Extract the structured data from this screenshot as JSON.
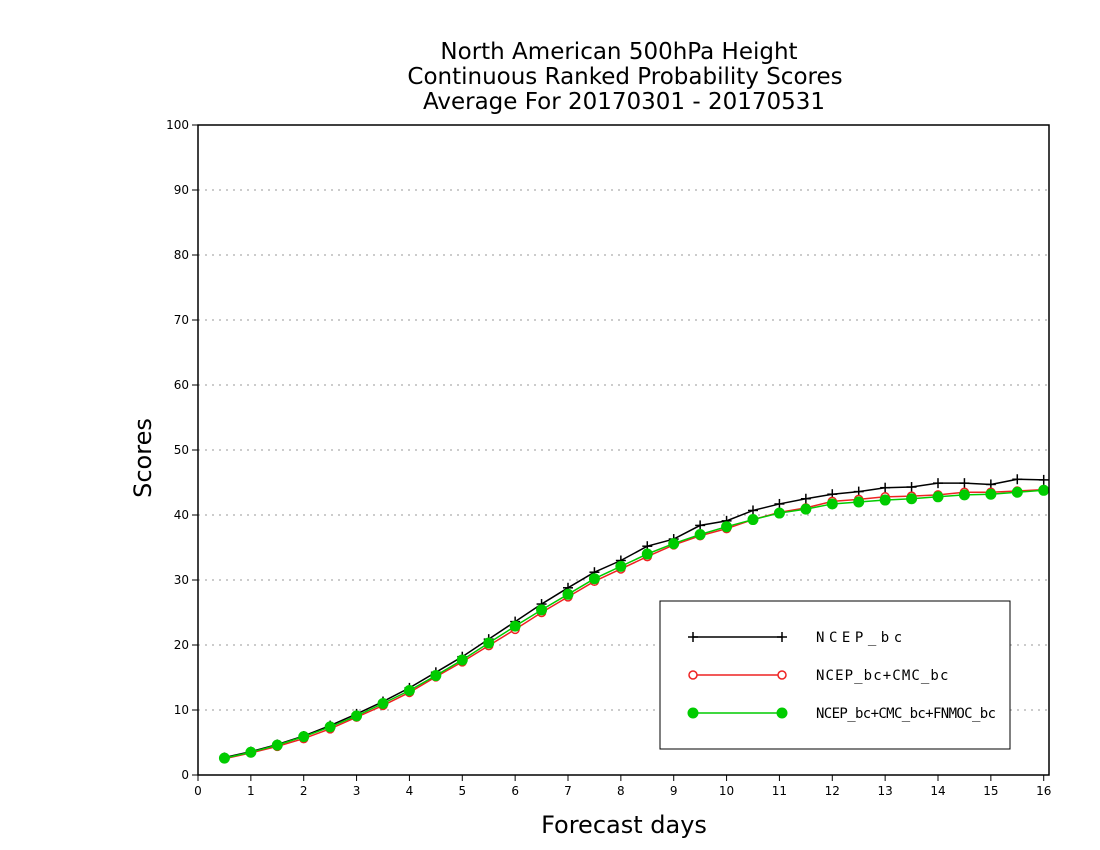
{
  "chart_data": {
    "type": "line",
    "title_lines": [
      "North American 500hPa Height",
      "Continuous Ranked Probability Scores",
      "Average For 20170301 - 20170531"
    ],
    "xlabel": "Forecast days",
    "ylabel": "Scores",
    "xlim": [
      0,
      16.1
    ],
    "ylim": [
      0,
      100
    ],
    "xticks": [
      "0",
      "1",
      "2",
      "3",
      "4",
      "5",
      "6",
      "7",
      "8",
      "9",
      "10",
      "11",
      "12",
      "13",
      "14",
      "15",
      "16"
    ],
    "yticks": [
      "0",
      "10",
      "20",
      "30",
      "40",
      "50",
      "60",
      "70",
      "80",
      "90",
      "100"
    ],
    "grid": "horizontal dotted",
    "legend_position": "bottom-right",
    "x": [
      0.5,
      1,
      1.5,
      2,
      2.5,
      3,
      3.5,
      4,
      4.5,
      5,
      5.5,
      6,
      6.5,
      7,
      7.5,
      8,
      8.5,
      9,
      9.5,
      10,
      10.5,
      11,
      11.5,
      12,
      12.5,
      13,
      13.5,
      14,
      14.5,
      15,
      15.5,
      16
    ],
    "series": [
      {
        "name": "NCEP_bc",
        "color": "#000000",
        "marker": "plus",
        "values": [
          2.7,
          3.6,
          4.7,
          6.0,
          7.6,
          9.4,
          11.3,
          13.4,
          15.8,
          18.2,
          20.9,
          23.6,
          26.3,
          28.8,
          31.2,
          33.0,
          35.2,
          36.3,
          38.4,
          39.1,
          40.7,
          41.7,
          42.5,
          43.2,
          43.6,
          44.2,
          44.3,
          44.9,
          44.9,
          44.7,
          45.5,
          45.4
        ]
      },
      {
        "name": "NCEP_bc+CMC_bc",
        "color": "#ee2222",
        "marker": "circle-open",
        "values": [
          2.5,
          3.4,
          4.4,
          5.6,
          7.1,
          8.9,
          10.7,
          12.7,
          15.1,
          17.4,
          19.9,
          22.4,
          25.0,
          27.4,
          29.8,
          31.7,
          33.6,
          35.4,
          36.8,
          37.9,
          39.3,
          40.4,
          41.1,
          42.1,
          42.4,
          42.8,
          42.9,
          43.1,
          43.5,
          43.5,
          43.7,
          43.9
        ]
      },
      {
        "name": "NCEP_bc+CMC_bc+FNMOC_bc",
        "color": "#00cc00",
        "marker": "circle-filled",
        "values": [
          2.6,
          3.5,
          4.6,
          5.9,
          7.4,
          9.1,
          11.0,
          13.0,
          15.3,
          17.7,
          20.3,
          22.9,
          25.4,
          27.8,
          30.2,
          32.1,
          34.0,
          35.6,
          37.0,
          38.2,
          39.3,
          40.3,
          40.9,
          41.7,
          42.0,
          42.3,
          42.5,
          42.8,
          43.1,
          43.2,
          43.5,
          43.8
        ]
      }
    ]
  }
}
